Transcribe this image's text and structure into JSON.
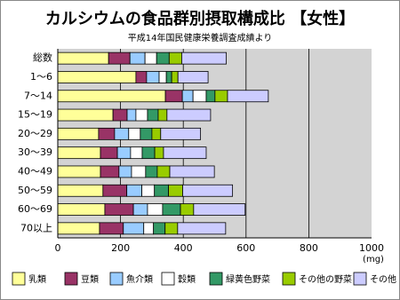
{
  "chart_data": {
    "type": "stacked-barh",
    "title": "カルシウムの食品群別摂取構成比 【女性】",
    "subtitle": "平成14年国民健康栄養調査成績より",
    "xlabel": "(mg)",
    "categories": [
      "総数",
      "1～6",
      "7～14",
      "15～19",
      "20～29",
      "30～39",
      "40～49",
      "50～59",
      "60～69",
      "70以上"
    ],
    "series": [
      {
        "name": "乳類",
        "color": "#ffff99",
        "values": [
          162,
          249,
          343,
          176,
          130,
          136,
          136,
          144,
          150,
          133
        ]
      },
      {
        "name": "豆類",
        "color": "#993366",
        "values": [
          68,
          34,
          54,
          45,
          51,
          54,
          59,
          76,
          91,
          76
        ]
      },
      {
        "name": "魚介類",
        "color": "#99ccff",
        "values": [
          48,
          40,
          34,
          28,
          45,
          42,
          40,
          48,
          45,
          65
        ]
      },
      {
        "name": "穀類",
        "color": "#ffffff",
        "values": [
          37,
          23,
          42,
          37,
          37,
          37,
          45,
          40,
          48,
          31
        ]
      },
      {
        "name": "緑黄色野菜",
        "color": "#339966",
        "values": [
          40,
          17,
          28,
          34,
          37,
          40,
          37,
          45,
          57,
          37
        ]
      },
      {
        "name": "その他の野菜",
        "color": "#99cc00",
        "values": [
          40,
          20,
          40,
          28,
          28,
          28,
          40,
          45,
          42,
          40
        ]
      },
      {
        "name": "その他",
        "color": "#ccccff",
        "values": [
          142,
          96,
          130,
          139,
          127,
          136,
          142,
          159,
          164,
          153
        ]
      }
    ],
    "xlim": [
      0,
      1000
    ],
    "xticks": [
      0,
      200,
      400,
      600,
      800,
      1000
    ],
    "grid": true
  }
}
